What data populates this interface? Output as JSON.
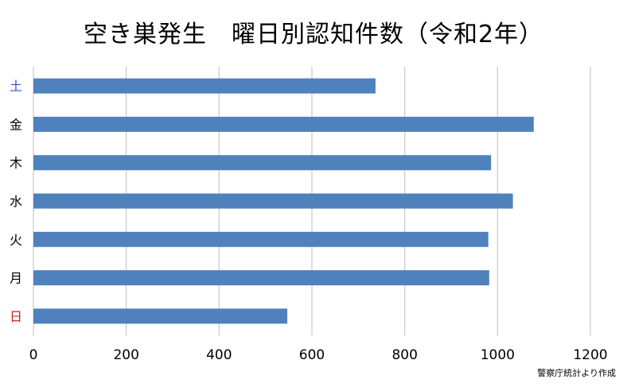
{
  "chart_data": {
    "type": "bar",
    "orientation": "horizontal",
    "title": "空き巣発生　曜日別認知件数（令和2年）",
    "categories": [
      "土",
      "金",
      "木",
      "水",
      "火",
      "月",
      "日"
    ],
    "values": [
      737,
      1078,
      986,
      1033,
      980,
      982,
      547
    ],
    "category_colors": [
      "#2f55c8",
      "#000000",
      "#000000",
      "#000000",
      "#000000",
      "#000000",
      "#d0201a"
    ],
    "bar_color": "#4f81bd",
    "xlim": [
      0,
      1200
    ],
    "xticks": [
      0,
      200,
      400,
      600,
      800,
      1000,
      1200
    ],
    "grid": "vertical",
    "legend": "none",
    "source": "警察庁統計より作成"
  }
}
